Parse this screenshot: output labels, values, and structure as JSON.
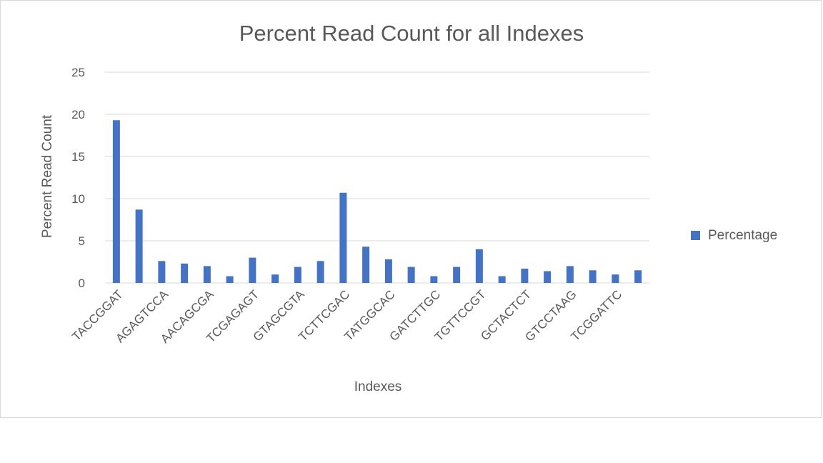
{
  "chart_data": {
    "type": "bar",
    "title": "Percent Read Count for all Indexes",
    "xlabel": "Indexes",
    "ylabel": "Percent Read Count",
    "ylim": [
      0,
      25
    ],
    "yticks": [
      0,
      5,
      10,
      15,
      20,
      25
    ],
    "grid": true,
    "legend_position": "right",
    "bar_color": "#4472c4",
    "tick_labels": [
      "TACCGGAT",
      "AGAGTCCA",
      "AACAGCGA",
      "TCGAGAGT",
      "GTAGCGTA",
      "TCTTCGAC",
      "TATGGCAC",
      "GATCTTGC",
      "TGTTCCGT",
      "GCTACTCT",
      "GTCCTAAG",
      "TCGGATTC"
    ],
    "series": [
      {
        "name": "Percentage",
        "values": [
          19.3,
          8.7,
          2.6,
          2.3,
          2.0,
          0.8,
          3.0,
          1.0,
          1.9,
          2.6,
          10.7,
          4.3,
          2.8,
          1.9,
          0.8,
          1.9,
          4.0,
          0.8,
          1.7,
          1.4,
          2.0,
          1.5,
          1.0,
          1.5
        ]
      }
    ]
  }
}
